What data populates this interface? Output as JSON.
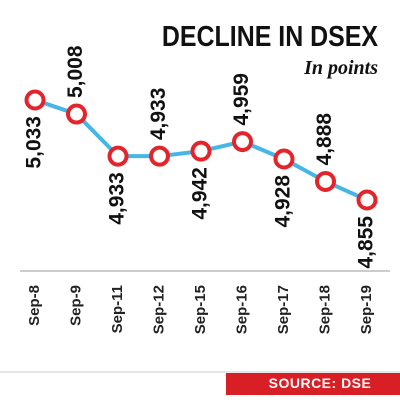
{
  "chart_data": {
    "type": "line",
    "title": "DECLINE IN DSEX",
    "subtitle": "In points",
    "source": "SOURCE: DSE",
    "categories": [
      "Sep-8",
      "Sep-9",
      "Sep-11",
      "Sep-12",
      "Sep-15",
      "Sep-16",
      "Sep-17",
      "Sep-18",
      "Sep-19"
    ],
    "values": [
      5033,
      5008,
      4933,
      4933,
      4942,
      4959,
      4928,
      4888,
      4855
    ],
    "value_labels": [
      "5,033",
      "5,008",
      "4,933",
      "4,933",
      "4,942",
      "4,959",
      "4,928",
      "4,888",
      "4,855"
    ],
    "color": "#45b6e6",
    "marker_color": "#e3242b"
  }
}
